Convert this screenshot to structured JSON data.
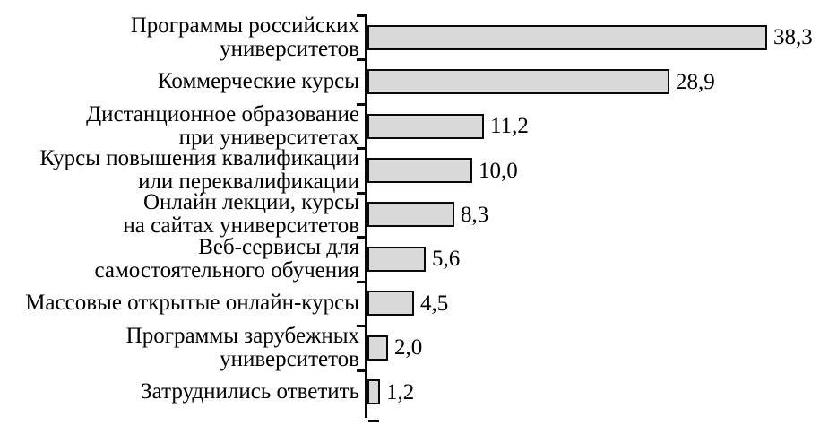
{
  "page": {
    "background_color": "#ffffff",
    "text_color": "#000000"
  },
  "chart_data": {
    "type": "bar",
    "orientation": "horizontal",
    "title": "",
    "xlabel": "",
    "ylabel": "",
    "xlim": [
      0,
      43
    ],
    "grid": false,
    "legend": false,
    "bar_fill_color": "#d9d9d9",
    "bar_border_color": "#0a0a0a",
    "decimal_separator": ",",
    "categories": [
      "Программы российских\nуниверситетов",
      "Коммерческие курсы",
      "Дистанционное образование\nпри университетах",
      "Курсы повышения квалификации\nили переквалификации",
      "Онлайн лекции, курсы\nна сайтах университетов",
      "Веб-сервисы для\nсамостоятельного обучения",
      "Массовые открытые онлайн-курсы",
      "Программы зарубежных\nуниверситетов",
      "Затруднились ответить"
    ],
    "values": [
      38.3,
      28.9,
      11.2,
      10.0,
      8.3,
      5.6,
      4.5,
      2.0,
      1.2
    ],
    "value_labels": [
      "38,3",
      "28,9",
      "11,2",
      "10,0",
      "8,3",
      "5,6",
      "4,5",
      "2,0",
      "1,2"
    ]
  }
}
